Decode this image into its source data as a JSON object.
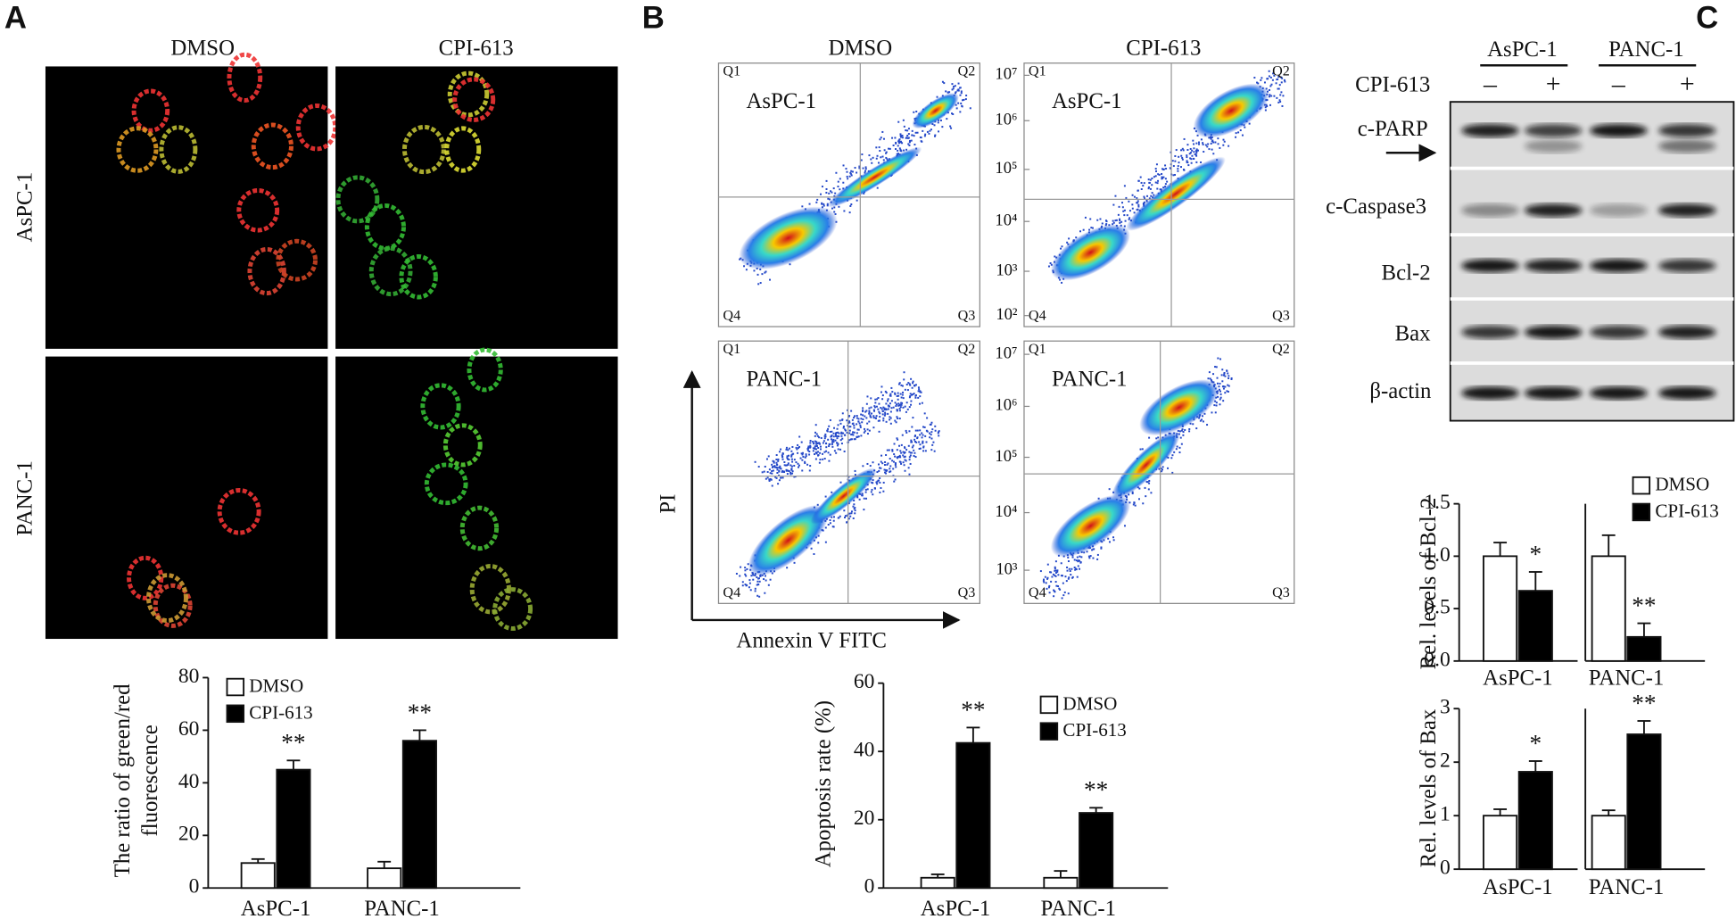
{
  "panel_labels": [
    "A",
    "B",
    "C"
  ],
  "panel_a": {
    "columns": [
      "DMSO",
      "CPI-613"
    ],
    "rows": [
      "AsPC-1",
      "PANC-1"
    ]
  },
  "panel_b": {
    "columns": [
      "DMSO",
      "CPI-613"
    ],
    "plots": [
      {
        "label": "AsPC-1",
        "quadrants": [
          "Q1",
          "Q2",
          "Q3",
          "Q4"
        ]
      },
      {
        "label": "AsPC-1",
        "quadrants": [
          "Q1",
          "Q2",
          "Q3",
          "Q4"
        ],
        "ytick_labels": [
          "10⁷",
          "10⁶",
          "10⁵",
          "10⁴",
          "10³",
          "10²"
        ]
      },
      {
        "label": "PANC-1",
        "quadrants": [
          "Q1",
          "Q2",
          "Q3",
          "Q4"
        ]
      },
      {
        "label": "PANC-1",
        "quadrants": [
          "Q1",
          "Q2",
          "Q3",
          "Q4"
        ],
        "ytick_labels": [
          "10⁷",
          "10⁶",
          "10⁵",
          "10⁴",
          "10³"
        ]
      }
    ],
    "axis_labels": {
      "y": "PI",
      "x": "Annexin V FITC"
    }
  },
  "panel_c": {
    "cell_lines": [
      "AsPC-1",
      "PANC-1"
    ],
    "treatment": "CPI-613",
    "lanes": [
      "–",
      "+",
      "–",
      "+"
    ],
    "proteins": [
      "c-PARP",
      "c-Caspase3",
      "Bcl-2",
      "Bax",
      "β-actin"
    ]
  },
  "chart_data": [
    {
      "type": "bar",
      "ylabel": [
        "The ratio of green/red",
        "fluorescence"
      ],
      "categories": [
        "AsPC-1",
        "PANC-1"
      ],
      "series": [
        {
          "name": "DMSO",
          "color": "#ffffff",
          "values": [
            9.5,
            7.5
          ],
          "errors": [
            1.5,
            2.5
          ]
        },
        {
          "name": "CPI-613",
          "color": "#000000",
          "values": [
            45,
            56
          ],
          "errors": [
            3.5,
            4
          ],
          "significance": [
            "**",
            "**"
          ]
        }
      ],
      "ylim": [
        0,
        80
      ],
      "yticks": [
        0,
        20,
        40,
        60,
        80
      ],
      "legend": "upper left"
    },
    {
      "type": "bar",
      "ylabel": "Apoptosis rate (%)",
      "categories": [
        "AsPC-1",
        "PANC-1"
      ],
      "series": [
        {
          "name": "DMSO",
          "color": "#ffffff",
          "values": [
            3,
            3
          ],
          "errors": [
            1,
            2
          ]
        },
        {
          "name": "CPI-613",
          "color": "#000000",
          "values": [
            42.5,
            22
          ],
          "errors": [
            4.5,
            1.5
          ],
          "significance": [
            "**",
            "**"
          ]
        }
      ],
      "ylim": [
        0,
        60
      ],
      "yticks": [
        0,
        20,
        40,
        60
      ],
      "legend": "upper right"
    },
    {
      "type": "bar",
      "ylabel": "Rel. levels of Bcl-2",
      "categories": [
        "AsPC-1",
        "PANC-1"
      ],
      "series": [
        {
          "name": "DMSO",
          "color": "#ffffff",
          "values": [
            1.0,
            1.0
          ],
          "errors": [
            0.13,
            0.2
          ]
        },
        {
          "name": "CPI-613",
          "color": "#000000",
          "values": [
            0.67,
            0.23
          ],
          "errors": [
            0.18,
            0.13
          ],
          "significance": [
            "*",
            "**"
          ]
        }
      ],
      "ylim": [
        0,
        1.5
      ],
      "yticks": [
        {
          "value": 0,
          "label": "0.0"
        },
        {
          "value": 0.5,
          "label": "0.5"
        },
        {
          "value": 1,
          "label": "1.0"
        },
        {
          "value": 1.5,
          "label": "1.5"
        }
      ],
      "legend": "upper right"
    },
    {
      "type": "bar",
      "ylabel": "Rel. levels of Bax",
      "categories": [
        "AsPC-1",
        "PANC-1"
      ],
      "series": [
        {
          "color": "#ffffff",
          "values": [
            1.0,
            1.0
          ],
          "errors": [
            0.12,
            0.1
          ]
        },
        {
          "color": "#000000",
          "values": [
            1.82,
            2.52
          ],
          "errors": [
            0.2,
            0.25
          ],
          "significance": [
            "*",
            "**"
          ]
        }
      ],
      "ylim": [
        0,
        3
      ],
      "yticks": [
        0,
        1,
        2,
        3
      ]
    }
  ]
}
